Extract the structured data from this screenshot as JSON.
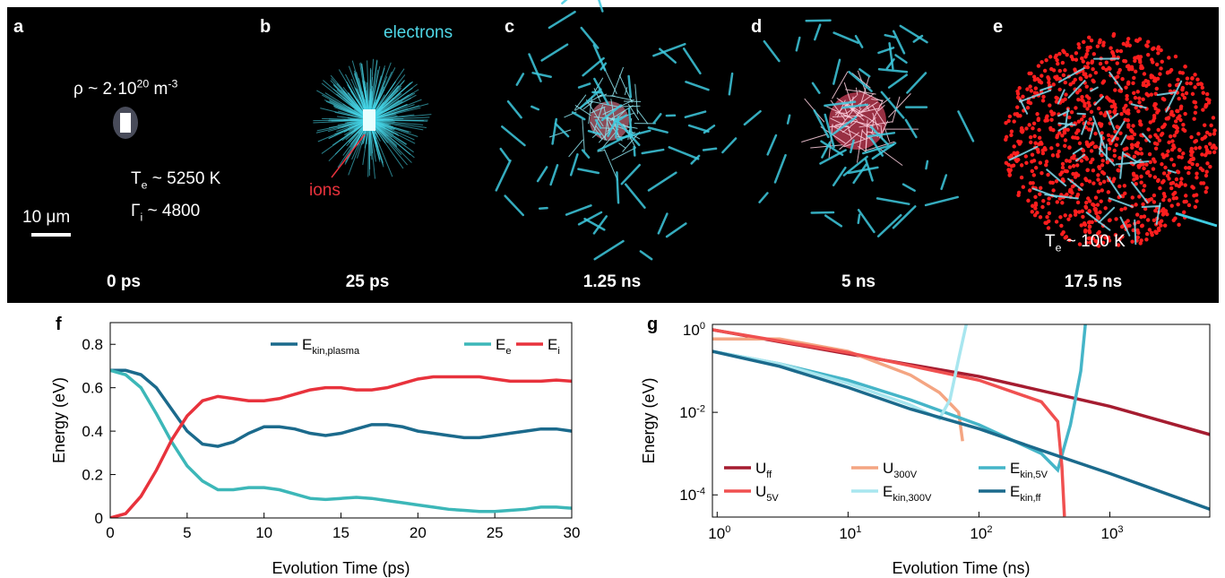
{
  "image_panels": {
    "panels": [
      {
        "letter": "a",
        "time": "0 ps"
      },
      {
        "letter": "b",
        "time": "25 ps"
      },
      {
        "letter": "c",
        "time": "1.25 ns"
      },
      {
        "letter": "d",
        "time": "5 ns"
      },
      {
        "letter": "e",
        "time": "17.5 ns"
      }
    ],
    "density": {
      "base": "ρ ~ 2·10",
      "exp": "20",
      "unit": " m",
      "unit_exp": "-3"
    },
    "temperature_a": {
      "base": "T",
      "sub": "e",
      "rest": " ~ 5250 K"
    },
    "coupling": {
      "base": "Γ",
      "sub": "i",
      "rest": " ~ 4800"
    },
    "scale_bar": "10 μm",
    "electrons": "electrons",
    "ions": "ions",
    "temperature_e": {
      "base": "T",
      "sub": "e",
      "rest": " ~ 100 K"
    }
  },
  "chart_data": [
    {
      "type": "line",
      "panel_label": "f",
      "xlabel": "Evolution Time (ps)",
      "ylabel": "Energy (eV)",
      "x": [
        0,
        1,
        2,
        3,
        4,
        5,
        6,
        7,
        8,
        9,
        10,
        11,
        12,
        13,
        14,
        15,
        16,
        17,
        18,
        19,
        20,
        21,
        22,
        23,
        24,
        25,
        26,
        27,
        28,
        29,
        30
      ],
      "xlim": [
        0,
        30
      ],
      "ylim": [
        0,
        0.9
      ],
      "xticks": [
        0,
        5,
        10,
        15,
        20,
        25,
        30
      ],
      "yticks": [
        0,
        0.2,
        0.4,
        0.6,
        0.8
      ],
      "series": [
        {
          "name": "E",
          "subscript": "kin,plasma",
          "color": "#1b6a8c",
          "values": [
            0.68,
            0.68,
            0.66,
            0.6,
            0.5,
            0.4,
            0.34,
            0.33,
            0.35,
            0.39,
            0.42,
            0.42,
            0.41,
            0.39,
            0.38,
            0.39,
            0.41,
            0.43,
            0.43,
            0.42,
            0.4,
            0.39,
            0.38,
            0.37,
            0.37,
            0.38,
            0.39,
            0.4,
            0.41,
            0.41,
            0.4
          ]
        },
        {
          "name": "E",
          "subscript": "e",
          "color": "#3cb7b8",
          "values": [
            0.68,
            0.66,
            0.6,
            0.48,
            0.35,
            0.24,
            0.17,
            0.13,
            0.13,
            0.14,
            0.14,
            0.13,
            0.11,
            0.09,
            0.085,
            0.09,
            0.095,
            0.09,
            0.08,
            0.07,
            0.06,
            0.05,
            0.04,
            0.035,
            0.03,
            0.03,
            0.035,
            0.04,
            0.05,
            0.05,
            0.045
          ]
        },
        {
          "name": "E",
          "subscript": "i",
          "color": "#e8323c",
          "values": [
            0,
            0.02,
            0.1,
            0.22,
            0.36,
            0.47,
            0.54,
            0.56,
            0.55,
            0.54,
            0.54,
            0.55,
            0.57,
            0.59,
            0.6,
            0.6,
            0.59,
            0.59,
            0.6,
            0.62,
            0.64,
            0.65,
            0.65,
            0.65,
            0.65,
            0.64,
            0.63,
            0.63,
            0.63,
            0.635,
            0.63
          ]
        }
      ]
    },
    {
      "type": "line",
      "panel_label": "g",
      "xlabel": "Evolution Time (ns)",
      "ylabel": "Energy (eV)",
      "xlog": true,
      "ylog": true,
      "xlim": [
        0.92,
        5800
      ],
      "ylim": [
        2.9e-05,
        1.35
      ],
      "xticks": [
        {
          "value": 1,
          "label": "10",
          "exponent": "0"
        },
        {
          "value": 10,
          "label": "10",
          "exponent": "1"
        },
        {
          "value": 100,
          "label": "10",
          "exponent": "2"
        },
        {
          "value": 1000,
          "label": "10",
          "exponent": "3"
        }
      ],
      "yticks": [
        {
          "value": 1,
          "label": "10",
          "exponent": "0"
        },
        {
          "value": 0.01,
          "label": "10",
          "exponent": "-2"
        },
        {
          "value": 0.0001,
          "label": "10",
          "exponent": "-4"
        }
      ],
      "series": [
        {
          "name": "U",
          "subscript": "ff",
          "color": "#a51c30",
          "x": [
            0.92,
            10,
            100,
            1000,
            5800
          ],
          "values": [
            1,
            0.26,
            0.074,
            0.014,
            0.0029
          ]
        },
        {
          "name": "U",
          "subscript": "300V",
          "color": "#f4a582",
          "x": [
            0.92,
            3,
            10,
            30,
            50,
            70,
            75
          ],
          "values": [
            0.6,
            0.6,
            0.3,
            0.08,
            0.03,
            0.01,
            0.002
          ]
        },
        {
          "name": "E",
          "subscript": "kin,5V",
          "color": "#45b5c8",
          "x": [
            0.92,
            3,
            10,
            30,
            100,
            300,
            400,
            500,
            600,
            650
          ],
          "values": [
            0.3,
            0.15,
            0.06,
            0.02,
            0.005,
            0.001,
            0.0004,
            0.005,
            0.1,
            1.35
          ]
        },
        {
          "name": "U",
          "subscript": "5V",
          "color": "#f05050",
          "x": [
            0.92,
            10,
            100,
            300,
            400,
            430,
            450
          ],
          "values": [
            1,
            0.28,
            0.06,
            0.018,
            0.006,
            0.0005,
            3e-05
          ]
        },
        {
          "name": "E",
          "subscript": "kin,300V",
          "color": "#a8e6ef",
          "x": [
            0.92,
            3,
            10,
            30,
            50,
            60,
            70,
            80
          ],
          "values": [
            0.3,
            0.15,
            0.05,
            0.015,
            0.007,
            0.02,
            0.2,
            1.35
          ]
        },
        {
          "name": "E",
          "subscript": "kin,ff",
          "color": "#1b6a8c",
          "x": [
            0.92,
            3,
            10,
            30,
            100,
            300,
            1000,
            5800
          ],
          "values": [
            0.3,
            0.13,
            0.04,
            0.012,
            0.004,
            0.0012,
            0.00033,
            4.5e-05
          ]
        }
      ]
    }
  ]
}
